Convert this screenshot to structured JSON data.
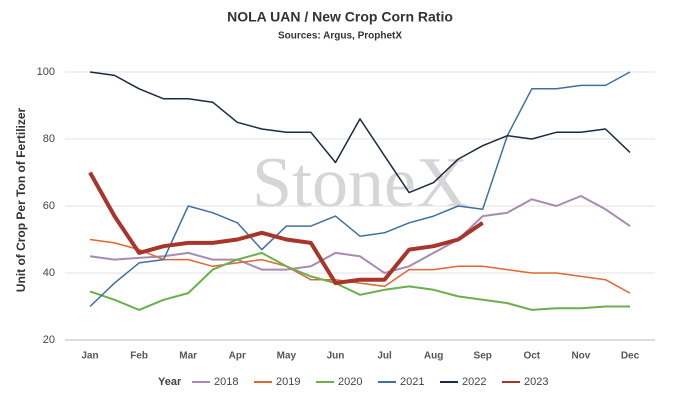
{
  "chart_data": {
    "type": "line",
    "title": "NOLA UAN / New Crop Corn Ratio",
    "subtitle": "Sources: Argus, ProphetX",
    "y_label": "Unit of Crop Per Ton of Fertilizer",
    "watermark": "StoneX",
    "legend_title": "Year",
    "legend": "bottom",
    "grid": true,
    "categories": [
      "Jan",
      null,
      "Feb",
      null,
      "Mar",
      null,
      "Apr",
      null,
      "May",
      null,
      "Jun",
      null,
      "Jul",
      null,
      "Aug",
      null,
      "Sep",
      null,
      "Oct",
      null,
      "Nov",
      null,
      "Dec"
    ],
    "ylim": [
      20,
      104
    ],
    "yticks": [
      20,
      40,
      60,
      80,
      100
    ],
    "series": [
      {
        "name": "2018",
        "color": "#a58bb5",
        "width": 2,
        "values": [
          45,
          44,
          44.5,
          45,
          46,
          44,
          44,
          41,
          41,
          42,
          46,
          45,
          40,
          42,
          46,
          50,
          57,
          58,
          62,
          60,
          63,
          59,
          54
        ]
      },
      {
        "name": "2019",
        "color": "#e0672e",
        "width": 1.5,
        "values": [
          50,
          49,
          47,
          44,
          44,
          42,
          43,
          44,
          42,
          38,
          38,
          37,
          36,
          41,
          41,
          42,
          42,
          41,
          40,
          40,
          39,
          38,
          34
        ]
      },
      {
        "name": "2020",
        "color": "#6ab04c",
        "width": 2,
        "values": [
          34.5,
          32,
          29,
          32,
          34,
          41,
          44,
          46,
          42,
          39,
          37,
          33.5,
          35,
          36,
          35,
          33,
          32,
          31,
          29,
          29.5,
          29.5,
          30,
          30
        ]
      },
      {
        "name": "2021",
        "color": "#41709e",
        "width": 1.5,
        "values": [
          30,
          37,
          43,
          44,
          60,
          58,
          55,
          47,
          54,
          54,
          57,
          51,
          52,
          55,
          57,
          60,
          59,
          81,
          95,
          95,
          96,
          96,
          100
        ]
      },
      {
        "name": "2022",
        "color": "#1b2a44",
        "width": 1.5,
        "values": [
          100,
          99,
          95,
          92,
          92,
          91,
          85,
          83,
          82,
          82,
          73,
          86,
          75,
          64,
          67,
          74,
          78,
          81,
          80,
          82,
          82,
          83,
          76
        ]
      },
      {
        "name": "2023",
        "color": "#a8352a",
        "width": 4,
        "values": [
          70,
          57,
          46,
          48,
          49,
          49,
          50,
          52,
          50,
          49,
          37,
          38,
          38,
          47,
          48,
          50,
          55,
          null,
          null,
          null,
          null,
          null,
          null
        ]
      }
    ]
  }
}
